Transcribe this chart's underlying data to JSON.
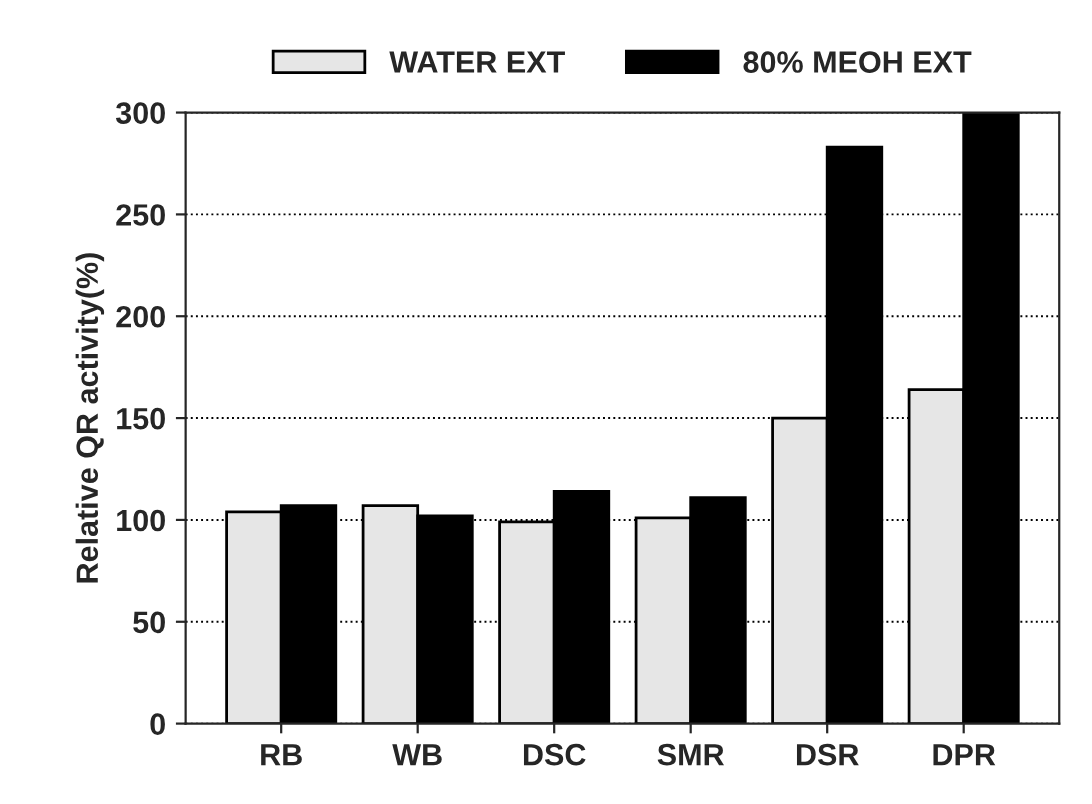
{
  "chart_data": {
    "type": "bar",
    "ylabel": "Relative QR activity(%)",
    "categories": [
      "RB",
      "WB",
      "DSC",
      "SMR",
      "DSR",
      "DPR"
    ],
    "series": [
      {
        "name": "WATER EXT",
        "color": "#e6e6e6",
        "values": [
          104,
          107,
          99,
          101,
          150,
          164
        ]
      },
      {
        "name": "80% MEOH EXT",
        "color": "#000000",
        "values": [
          107,
          102,
          114,
          111,
          283,
          300
        ]
      }
    ],
    "ylim": [
      0,
      300
    ],
    "yticks": [
      0,
      50,
      100,
      150,
      200,
      250,
      300
    ],
    "grid": "y",
    "legend": "top"
  }
}
